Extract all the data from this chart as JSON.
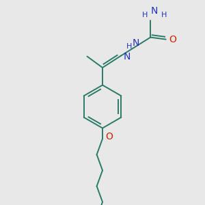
{
  "bg_color": "#e8e8e8",
  "bond_color": "#2a7a68",
  "N_color": "#2233bb",
  "O_color": "#cc2200",
  "font_size_atom": 9,
  "font_size_h": 8,
  "line_width": 1.4,
  "fig_size": [
    3.0,
    3.0
  ],
  "dpi": 100,
  "xlim": [
    0,
    10
  ],
  "ylim": [
    0,
    10
  ]
}
